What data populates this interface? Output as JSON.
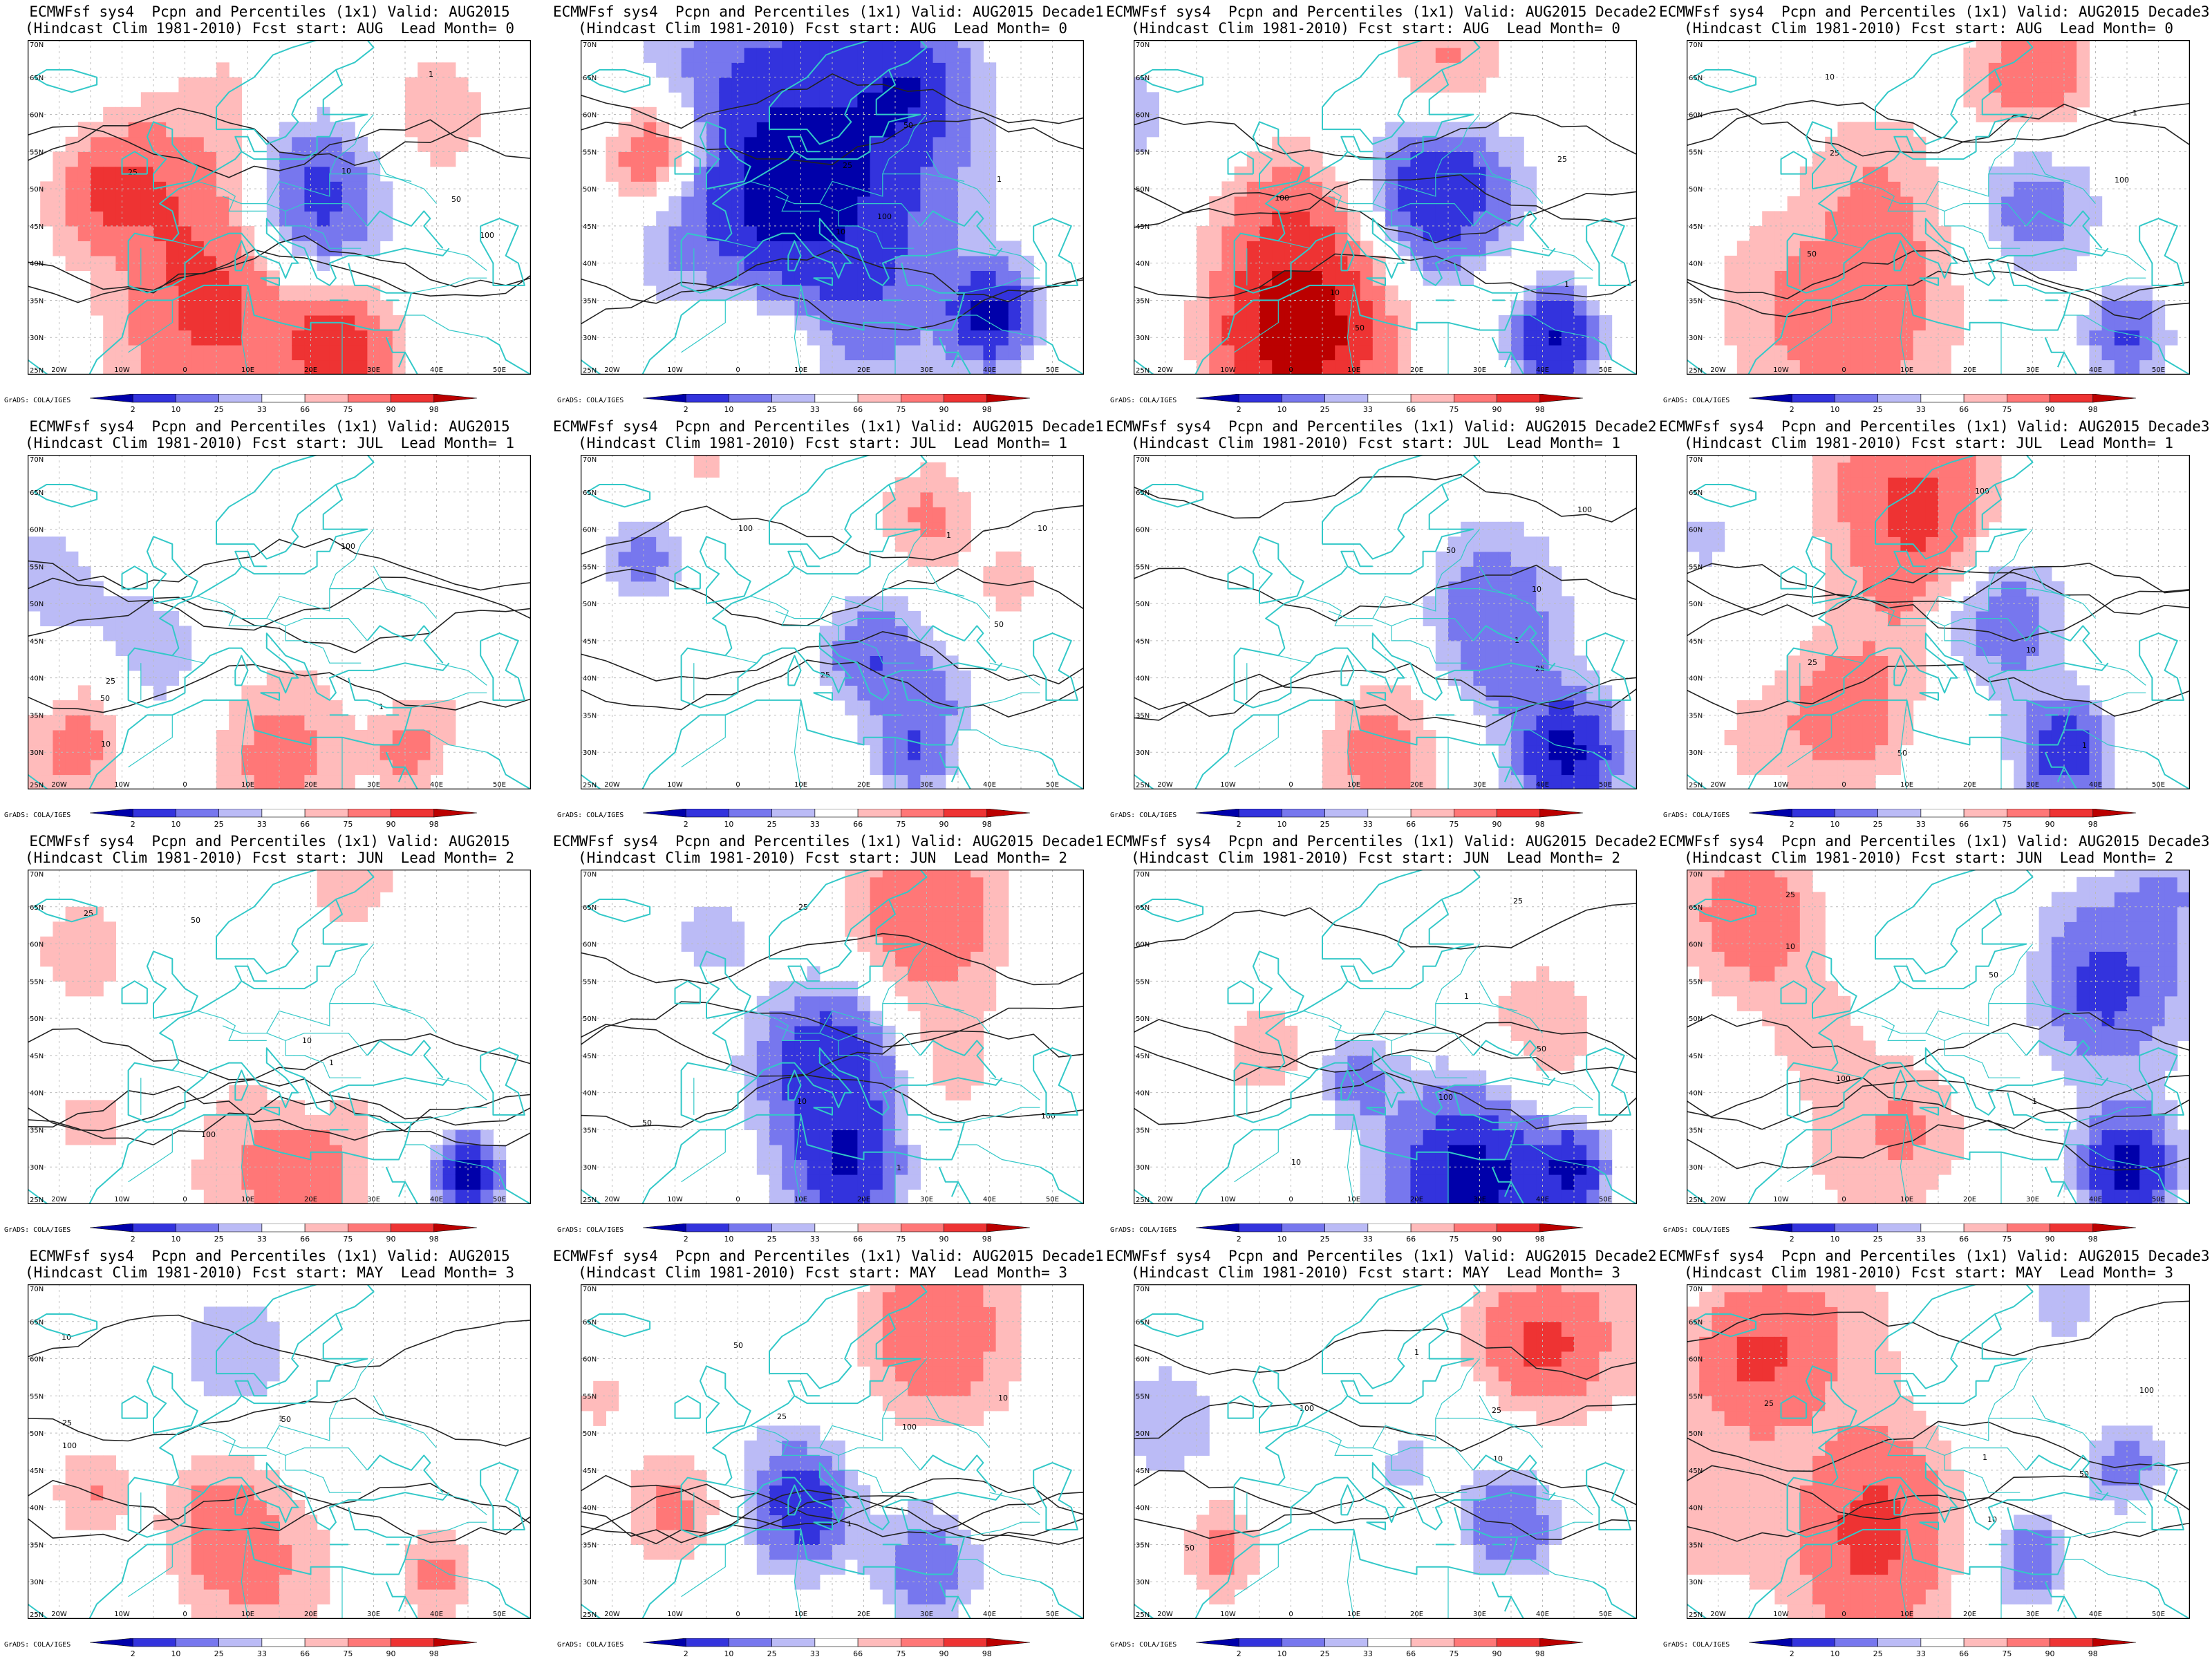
{
  "credit": "GrADS: COLA/IGES",
  "rows": [
    {
      "lead_line": "(Hindcast Clim 1981-2010) Fcst start: AUG  Lead Month= 0",
      "panels": [
        {
          "title": "ECMWFsf sys4  Pcpn and Percentiles (1x1) Valid: AUG2015"
        },
        {
          "title": "ECMWFsf sys4  Pcpn and Percentiles (1x1) Valid: AUG2015 Decade1"
        },
        {
          "title": "ECMWFsf sys4  Pcpn and Percentiles (1x1) Valid: AUG2015 Decade2"
        },
        {
          "title": "ECMWFsf sys4  Pcpn and Percentiles (1x1) Valid: AUG2015 Decade3"
        }
      ]
    },
    {
      "lead_line": "(Hindcast Clim 1981-2010) Fcst start: JUL  Lead Month= 1",
      "panels": [
        {
          "title": "ECMWFsf sys4  Pcpn and Percentiles (1x1) Valid: AUG2015"
        },
        {
          "title": "ECMWFsf sys4  Pcpn and Percentiles (1x1) Valid: AUG2015 Decade1"
        },
        {
          "title": "ECMWFsf sys4  Pcpn and Percentiles (1x1) Valid: AUG2015 Decade2"
        },
        {
          "title": "ECMWFsf sys4  Pcpn and Percentiles (1x1) Valid: AUG2015 Decade3"
        }
      ]
    },
    {
      "lead_line": "(Hindcast Clim 1981-2010) Fcst start: JUN  Lead Month= 2",
      "panels": [
        {
          "title": "ECMWFsf sys4  Pcpn and Percentiles (1x1) Valid: AUG2015"
        },
        {
          "title": "ECMWFsf sys4  Pcpn and Percentiles (1x1) Valid: AUG2015 Decade1"
        },
        {
          "title": "ECMWFsf sys4  Pcpn and Percentiles (1x1) Valid: AUG2015 Decade2"
        },
        {
          "title": "ECMWFsf sys4  Pcpn and Percentiles (1x1) Valid: AUG2015 Decade3"
        }
      ]
    },
    {
      "lead_line": "(Hindcast Clim 1981-2010) Fcst start: MAY  Lead Month= 3",
      "panels": [
        {
          "title": "ECMWFsf sys4  Pcpn and Percentiles (1x1) Valid: AUG2015"
        },
        {
          "title": "ECMWFsf sys4  Pcpn and Percentiles (1x1) Valid: AUG2015 Decade1"
        },
        {
          "title": "ECMWFsf sys4  Pcpn and Percentiles (1x1) Valid: AUG2015 Decade2"
        },
        {
          "title": "ECMWFsf sys4  Pcpn and Percentiles (1x1) Valid: AUG2015 Decade3"
        }
      ]
    }
  ],
  "map": {
    "lon_labels": [
      "20W",
      "10W",
      "0",
      "10E",
      "20E",
      "30E",
      "40E",
      "50E"
    ],
    "lat_labels": [
      "70N",
      "65N",
      "60N",
      "55N",
      "50N",
      "45N",
      "40N",
      "35N",
      "30N",
      "25N"
    ],
    "coast_color": "#33c8c8",
    "grid_color": "#bbbbbb",
    "contour_color": "#222222"
  },
  "colorbar": {
    "labels": [
      "2",
      "10",
      "25",
      "33",
      "66",
      "75",
      "90",
      "98"
    ],
    "colors": [
      "#0000aa",
      "#3333dd",
      "#7777ee",
      "#bbbbf6",
      "#ffffff",
      "#ffbbbb",
      "#ff7777",
      "#ee3333",
      "#bb0000"
    ]
  },
  "chart_data": {
    "type": "heatmap",
    "variable": "Pcpn and Percentiles",
    "x_range_deg": [
      -25,
      55
    ],
    "y_range_deg": [
      25,
      70
    ],
    "color_classes_percentile": [
      2,
      10,
      25,
      33,
      66,
      75,
      90,
      98
    ],
    "contour_labels": [
      "1",
      "10",
      "25",
      "50",
      "100"
    ]
  }
}
